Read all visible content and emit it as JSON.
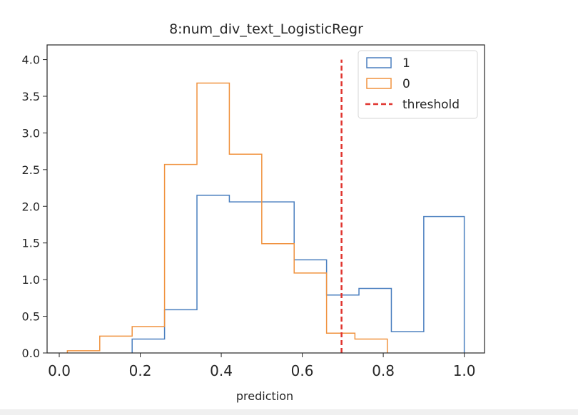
{
  "chart_data": {
    "type": "histogram",
    "title": "8:num_div_text_LogisticRegr",
    "xlabel": "prediction",
    "ylabel": "",
    "xlim": [
      -0.03,
      1.05
    ],
    "ylim": [
      0,
      4.2
    ],
    "x_ticks": [
      "0.0",
      "0.2",
      "0.4",
      "0.6",
      "0.8",
      "1.0"
    ],
    "y_ticks": [
      "0.0",
      "0.5",
      "1.0",
      "1.5",
      "2.0",
      "2.5",
      "3.0",
      "3.5",
      "4.0"
    ],
    "grid": false,
    "legend_position": "top-right",
    "series": [
      {
        "name": "1",
        "color": "#4a7fbf",
        "edges": [
          0.18,
          0.26,
          0.34,
          0.42,
          0.5,
          0.58,
          0.66,
          0.74,
          0.82,
          0.9,
          1.0
        ],
        "counts": [
          0.19,
          0.59,
          2.15,
          2.06,
          2.06,
          1.27,
          0.79,
          0.88,
          0.29,
          1.86
        ]
      },
      {
        "name": "0",
        "color": "#f0923e",
        "edges": [
          0.02,
          0.1,
          0.18,
          0.26,
          0.34,
          0.42,
          0.5,
          0.58,
          0.66,
          0.73,
          0.81
        ],
        "counts": [
          0.03,
          0.23,
          0.36,
          2.57,
          3.68,
          2.71,
          1.49,
          1.09,
          0.27,
          0.19
        ]
      }
    ],
    "threshold": {
      "name": "threshold",
      "x": 0.697,
      "y_range": [
        0,
        4.0
      ],
      "color": "#e0342e",
      "style": "dashed"
    }
  }
}
